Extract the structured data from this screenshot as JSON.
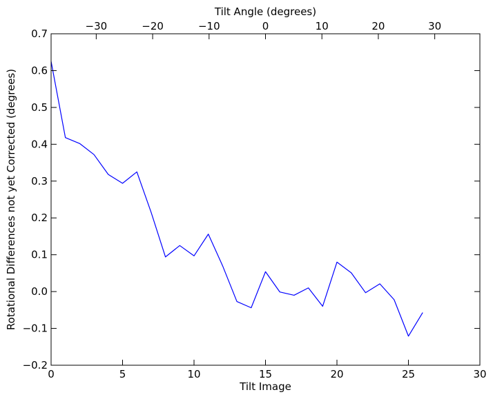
{
  "chart_data": {
    "type": "line",
    "title": "",
    "xlabel": "Tilt Image",
    "ylabel": "Rotational Differences not yet Corrected (degrees)",
    "x2label": "Tilt Angle (degrees)",
    "xlim": [
      0,
      30
    ],
    "ylim": [
      -0.2,
      0.7
    ],
    "x2lim": [
      -38,
      38
    ],
    "grid": false,
    "legend": "none",
    "x_ticks": [
      0,
      5,
      10,
      15,
      20,
      25,
      30
    ],
    "y_ticks": [
      -0.2,
      -0.1,
      0.0,
      0.1,
      0.2,
      0.3,
      0.4,
      0.5,
      0.6,
      0.7
    ],
    "x2_ticks": [
      -30,
      -20,
      -10,
      0,
      10,
      20,
      30
    ],
    "x_tick_labels": [
      "0",
      "5",
      "10",
      "15",
      "20",
      "25",
      "30"
    ],
    "y_tick_labels": [
      "−0.2",
      "−0.1",
      "0.0",
      "0.1",
      "0.2",
      "0.3",
      "0.4",
      "0.5",
      "0.6",
      "0.7"
    ],
    "x2_tick_labels": [
      "−30",
      "−20",
      "−10",
      "0",
      "10",
      "20",
      "30"
    ],
    "series": [
      {
        "color": "#0000ff",
        "x": [
          0,
          1,
          2,
          3,
          4,
          5,
          6,
          7,
          8,
          9,
          10,
          11,
          12,
          13,
          14,
          15,
          16,
          17,
          18,
          19,
          20,
          21,
          22,
          23,
          24,
          25,
          26
        ],
        "y": [
          0.625,
          0.418,
          0.402,
          0.372,
          0.318,
          0.294,
          0.325,
          0.215,
          0.094,
          0.125,
          0.097,
          0.156,
          0.07,
          -0.027,
          -0.044,
          0.054,
          -0.001,
          -0.01,
          0.01,
          -0.04,
          0.08,
          0.051,
          -0.003,
          0.021,
          -0.022,
          -0.121,
          -0.057
        ]
      }
    ]
  }
}
